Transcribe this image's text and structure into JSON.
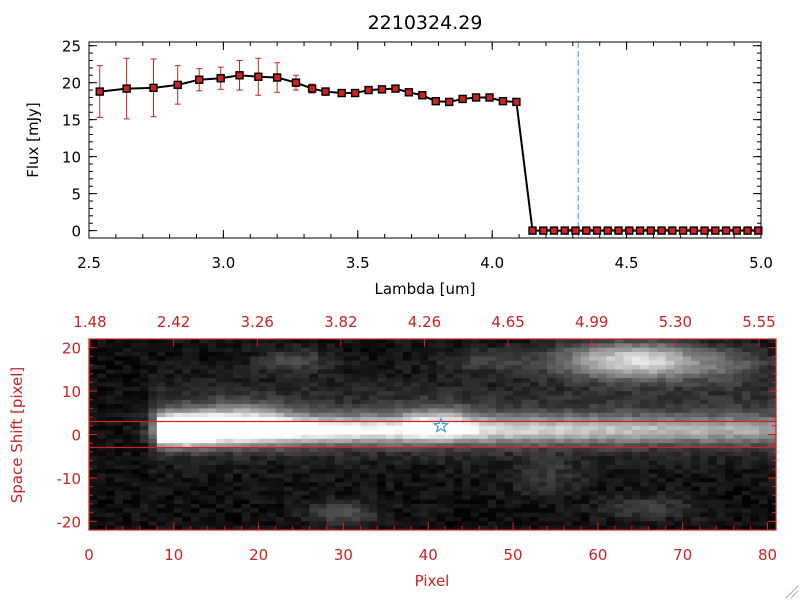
{
  "chart_data": [
    {
      "type": "line",
      "title": "2210324.29",
      "xlabel": "Lambda [um]",
      "ylabel": "Flux [mJy]",
      "xlim": [
        2.5,
        5.0
      ],
      "ylim": [
        -1,
        25.5
      ],
      "xticks": [
        "2.5",
        "3.0",
        "3.5",
        "4.0",
        "4.5",
        "5.0"
      ],
      "yticks": [
        "0",
        "5",
        "10",
        "15",
        "20",
        "25"
      ],
      "colors": {
        "line": "#000000",
        "marker": "#cc2222",
        "errorbar": "#cc2222",
        "vline": "#3399dd"
      },
      "vline_x": 4.32,
      "series": [
        {
          "x": [
            2.54,
            2.64,
            2.74,
            2.83,
            2.91,
            2.99,
            3.06,
            3.13,
            3.2,
            3.27,
            3.33,
            3.38,
            3.44,
            3.49,
            3.54,
            3.59,
            3.64,
            3.69,
            3.74,
            3.79,
            3.84,
            3.89,
            3.94,
            3.99,
            4.04,
            4.09,
            4.15,
            4.19,
            4.23,
            4.27,
            4.31,
            4.35,
            4.39,
            4.43,
            4.47,
            4.51,
            4.55,
            4.59,
            4.63,
            4.67,
            4.71,
            4.75,
            4.79,
            4.83,
            4.87,
            4.91,
            4.95,
            4.99
          ],
          "y": [
            18.8,
            19.2,
            19.3,
            19.7,
            20.4,
            20.6,
            21.0,
            20.8,
            20.7,
            20.0,
            19.2,
            18.8,
            18.6,
            18.6,
            19.0,
            19.1,
            19.2,
            18.7,
            18.3,
            17.5,
            17.4,
            17.8,
            18.0,
            18.0,
            17.5,
            17.4,
            0,
            0,
            0,
            0,
            0,
            0,
            0,
            0,
            0,
            0,
            0,
            0,
            0,
            0,
            0,
            0,
            0,
            0,
            0,
            0,
            0,
            0
          ],
          "err": [
            3.5,
            4.1,
            3.9,
            2.6,
            1.5,
            1.5,
            2.0,
            2.5,
            2.0,
            1.0,
            0.6,
            0.5,
            0.4,
            0.4,
            0.4,
            0.4,
            0.4,
            0.4,
            0.4,
            0.4,
            0.4,
            0.4,
            0.4,
            0.4,
            0.4,
            0.4,
            0,
            0,
            0,
            0,
            0,
            0,
            0,
            0,
            0,
            0,
            0,
            0,
            0,
            0,
            0,
            0,
            0,
            0,
            0,
            0,
            0,
            0
          ]
        }
      ]
    },
    {
      "type": "heatmap",
      "xlabel": "Pixel",
      "ylabel": "Space Shift [pixel]",
      "xlim": [
        0,
        81
      ],
      "ylim": [
        -22,
        22
      ],
      "xticks": [
        "0",
        "10",
        "20",
        "30",
        "40",
        "50",
        "60",
        "70",
        "80"
      ],
      "yticks": [
        "-20",
        "-10",
        "0",
        "10",
        "20"
      ],
      "top_axis_ticks": [
        "1.48",
        "2.42",
        "3.26",
        "3.82",
        "4.26",
        "4.65",
        "4.99",
        "5.30",
        "5.55"
      ],
      "colormap": "grayscale",
      "colors": {
        "axis": "#cc2222",
        "aperture_lines": "#cc2222",
        "marker": "#3399dd"
      },
      "aperture_y": [
        -3,
        3
      ],
      "marker_point": {
        "x": 41.5,
        "y": 2
      }
    }
  ]
}
